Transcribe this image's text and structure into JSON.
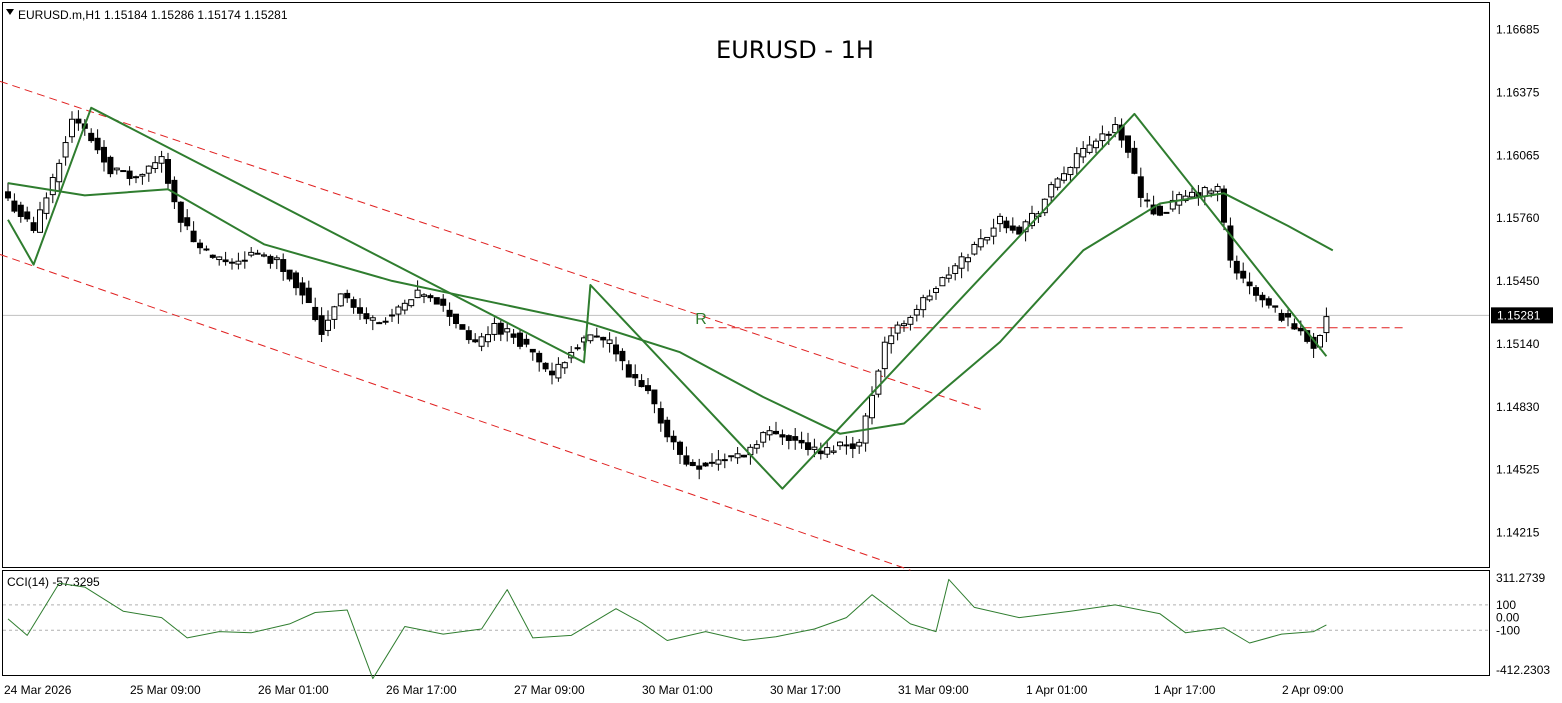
{
  "header": {
    "symbol_info": "EURUSD.m,H1  1.15184 1.15286 1.15174 1.15281",
    "title": "EURUSD - 1H"
  },
  "price_axis": {
    "ticks": [
      1.16685,
      1.16375,
      1.16065,
      1.1576,
      1.1545,
      1.1514,
      1.1483,
      1.14525,
      1.14215
    ],
    "tick_labels": [
      "1.16685",
      "1.16375",
      "1.16065",
      "1.15760",
      "1.15450",
      "1.15140",
      "1.14830",
      "1.14525",
      "1.14215"
    ],
    "current_price": 1.15281,
    "current_price_label": "1.15281",
    "ylim": [
      1.1408,
      1.1678
    ]
  },
  "time_axis": {
    "labels": [
      "24 Mar 2026",
      "25 Mar 09:00",
      "26 Mar 01:00",
      "26 Mar 17:00",
      "27 Mar 09:00",
      "30 Mar 01:00",
      "30 Mar 17:00",
      "31 Mar 09:00",
      "1 Apr 01:00",
      "1 Apr 17:00",
      "2 Apr 09:00"
    ]
  },
  "indicator": {
    "label": "CCI(14) -57.3295",
    "levels": [
      311.2739,
      100,
      0.0,
      -100,
      -412.2303
    ],
    "level_labels": [
      "311.2739",
      "100",
      "0.00",
      "-100",
      "-412.2303"
    ]
  },
  "annotation": {
    "marker": "R"
  },
  "colors": {
    "bull_body": "#ffffff",
    "bear_body": "#000000",
    "ma": "#2f7d2f",
    "zigzag": "#2f7d2f",
    "channel": "#e02020",
    "cci": "#2f7d2f",
    "price_line": "#c0c0c0",
    "current_badge_bg": "#000000",
    "current_badge_text": "#ffffff"
  },
  "chart_data": {
    "type": "candlestick",
    "symbol": "EURUSD.m",
    "timeframe": "H1",
    "title": "EURUSD - 1H",
    "ohlc": {
      "open": 1.15184,
      "high": 1.15286,
      "low": 1.15174,
      "close": 1.15281
    },
    "anchors": [
      [
        0,
        1.1585
      ],
      [
        4,
        1.157
      ],
      [
        7,
        1.1595
      ],
      [
        10,
        1.1625
      ],
      [
        13,
        1.1615
      ],
      [
        16,
        1.16
      ],
      [
        20,
        1.1595
      ],
      [
        24,
        1.1605
      ],
      [
        27,
        1.1575
      ],
      [
        30,
        1.156
      ],
      [
        34,
        1.1553
      ],
      [
        38,
        1.1558
      ],
      [
        42,
        1.1555
      ],
      [
        46,
        1.154
      ],
      [
        49,
        1.152
      ],
      [
        52,
        1.154
      ],
      [
        55,
        1.1528
      ],
      [
        58,
        1.1525
      ],
      [
        61,
        1.153
      ],
      [
        64,
        1.1538
      ],
      [
        67,
        1.1535
      ],
      [
        70,
        1.1525
      ],
      [
        73,
        1.1513
      ],
      [
        76,
        1.1523
      ],
      [
        79,
        1.1518
      ],
      [
        82,
        1.151
      ],
      [
        85,
        1.1497
      ],
      [
        88,
        1.1512
      ],
      [
        91,
        1.1517
      ],
      [
        94,
        1.1515
      ],
      [
        97,
        1.1498
      ],
      [
        100,
        1.149
      ],
      [
        103,
        1.147
      ],
      [
        106,
        1.1455
      ],
      [
        109,
        1.1455
      ],
      [
        112,
        1.1458
      ],
      [
        115,
        1.146
      ],
      [
        118,
        1.147
      ],
      [
        121,
        1.147
      ],
      [
        124,
        1.1465
      ],
      [
        127,
        1.146
      ],
      [
        130,
        1.1465
      ],
      [
        133,
        1.1465
      ],
      [
        135,
        1.149
      ],
      [
        137,
        1.1515
      ],
      [
        140,
        1.1525
      ],
      [
        143,
        1.1535
      ],
      [
        146,
        1.1545
      ],
      [
        149,
        1.1555
      ],
      [
        152,
        1.1565
      ],
      [
        155,
        1.1575
      ],
      [
        158,
        1.157
      ],
      [
        161,
        1.158
      ],
      [
        164,
        1.1595
      ],
      [
        167,
        1.1605
      ],
      [
        170,
        1.1615
      ],
      [
        173,
        1.162
      ],
      [
        175,
        1.161
      ],
      [
        177,
        1.1585
      ],
      [
        180,
        1.1578
      ],
      [
        183,
        1.1585
      ],
      [
        186,
        1.1588
      ],
      [
        189,
        1.159
      ],
      [
        191,
        1.1555
      ],
      [
        193,
        1.1545
      ],
      [
        196,
        1.1535
      ],
      [
        199,
        1.1528
      ],
      [
        202,
        1.152
      ],
      [
        204,
        1.1513
      ],
      [
        206,
        1.15281
      ]
    ],
    "moving_average": [
      [
        0,
        1.1593
      ],
      [
        12,
        1.1587
      ],
      [
        25,
        1.159
      ],
      [
        40,
        1.1563
      ],
      [
        60,
        1.1545
      ],
      [
        75,
        1.1535
      ],
      [
        90,
        1.1525
      ],
      [
        105,
        1.151
      ],
      [
        118,
        1.1488
      ],
      [
        130,
        1.147
      ],
      [
        140,
        1.1475
      ],
      [
        155,
        1.1515
      ],
      [
        168,
        1.156
      ],
      [
        180,
        1.1583
      ],
      [
        190,
        1.1588
      ],
      [
        200,
        1.1572
      ],
      [
        207,
        1.156
      ]
    ],
    "zigzag": [
      [
        0,
        1.1575
      ],
      [
        4,
        1.1553
      ],
      [
        13,
        1.163
      ],
      [
        90,
        1.1505
      ],
      [
        91,
        1.1543
      ],
      [
        121,
        1.1443
      ],
      [
        176,
        1.1627
      ],
      [
        206,
        1.1508
      ]
    ],
    "channel": {
      "upper": [
        [
          0,
          1.1643
        ],
        [
          152,
          1.1482
        ]
      ],
      "lower": [
        [
          0,
          1.1558
        ],
        [
          141,
          1.1403
        ]
      ]
    },
    "horizontal_line": {
      "x_from": 109,
      "x_to": 218,
      "y": 1.1522
    },
    "cci": [
      [
        0,
        -10
      ],
      [
        3,
        -140
      ],
      [
        8,
        270
      ],
      [
        12,
        240
      ],
      [
        18,
        50
      ],
      [
        24,
        0
      ],
      [
        28,
        -160
      ],
      [
        33,
        -110
      ],
      [
        38,
        -120
      ],
      [
        44,
        -50
      ],
      [
        48,
        40
      ],
      [
        53,
        60
      ],
      [
        57,
        -480
      ],
      [
        62,
        -70
      ],
      [
        68,
        -130
      ],
      [
        74,
        -90
      ],
      [
        78,
        220
      ],
      [
        82,
        -160
      ],
      [
        88,
        -140
      ],
      [
        95,
        70
      ],
      [
        99,
        -40
      ],
      [
        103,
        -180
      ],
      [
        109,
        -110
      ],
      [
        115,
        -180
      ],
      [
        120,
        -150
      ],
      [
        126,
        -90
      ],
      [
        131,
        0
      ],
      [
        135,
        180
      ],
      [
        141,
        -50
      ],
      [
        145,
        -110
      ],
      [
        147,
        300
      ],
      [
        151,
        80
      ],
      [
        158,
        0
      ],
      [
        166,
        50
      ],
      [
        173,
        100
      ],
      [
        180,
        30
      ],
      [
        184,
        -120
      ],
      [
        190,
        -80
      ],
      [
        194,
        -200
      ],
      [
        199,
        -130
      ],
      [
        204,
        -110
      ],
      [
        206,
        -57.33
      ]
    ],
    "cci_ylim": [
      -412.2303,
      311.2739
    ]
  }
}
